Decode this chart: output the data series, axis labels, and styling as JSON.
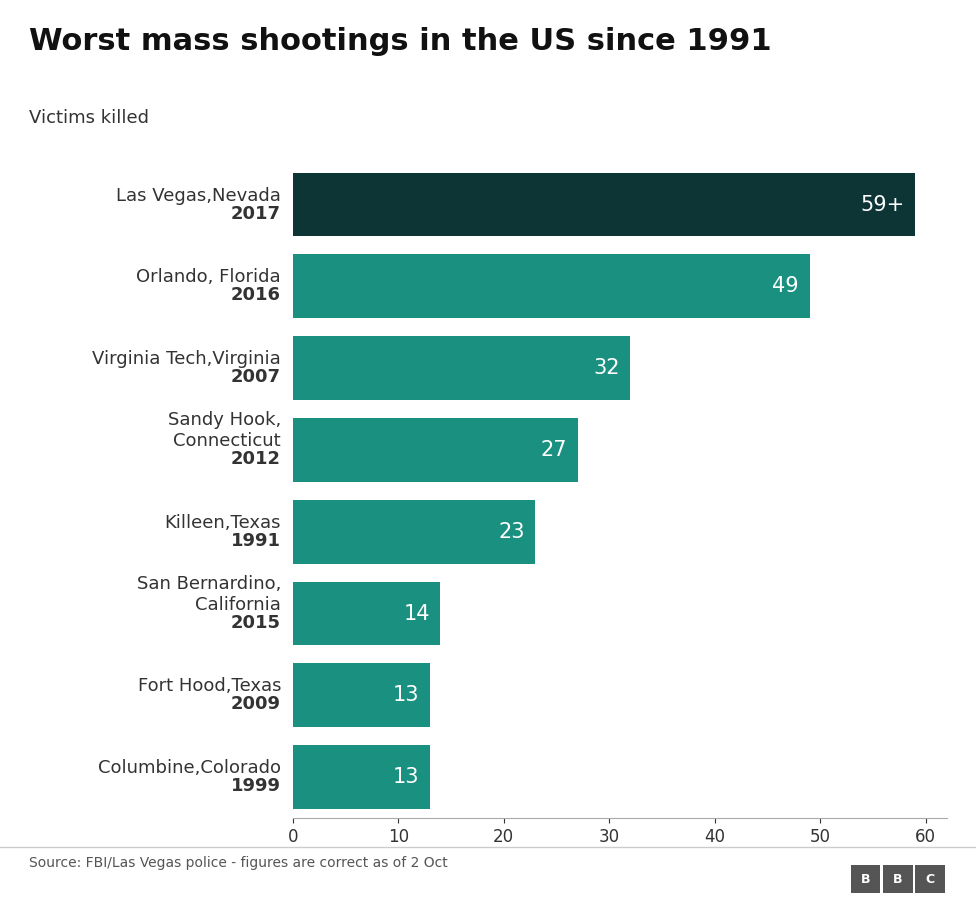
{
  "title": "Worst mass shootings in the US since 1991",
  "subtitle": "Victims killed",
  "categories_line1": [
    "Las Vegas,Nevada",
    "Orlando, Florida",
    "Virginia Tech,Virginia",
    "Sandy Hook,",
    "Killeen,Texas",
    "San Bernardino,",
    "Fort Hood,Texas",
    "Columbine,Colorado"
  ],
  "categories_line2": [
    null,
    null,
    null,
    "Connecticut",
    null,
    "California",
    null,
    null
  ],
  "years": [
    "2017",
    "2016",
    "2007",
    "2012",
    "1991",
    "2015",
    "2009",
    "1999"
  ],
  "values": [
    59,
    49,
    32,
    27,
    23,
    14,
    13,
    13
  ],
  "labels": [
    "59+",
    "49",
    "32",
    "27",
    "23",
    "14",
    "13",
    "13"
  ],
  "bar_colors": [
    "#0d3535",
    "#1a9080",
    "#1a9080",
    "#1a9080",
    "#1a9080",
    "#1a9080",
    "#1a9080",
    "#1a9080"
  ],
  "background_color": "#ffffff",
  "source_text": "Source: FBI/Las Vegas police - figures are correct as of 2 Oct",
  "xlim": [
    0,
    62
  ],
  "xticks": [
    0,
    10,
    20,
    30,
    40,
    50,
    60
  ],
  "title_fontsize": 22,
  "subtitle_fontsize": 13,
  "label_fontsize": 13,
  "tick_fontsize": 12,
  "source_fontsize": 10,
  "bar_label_fontsize": 15
}
